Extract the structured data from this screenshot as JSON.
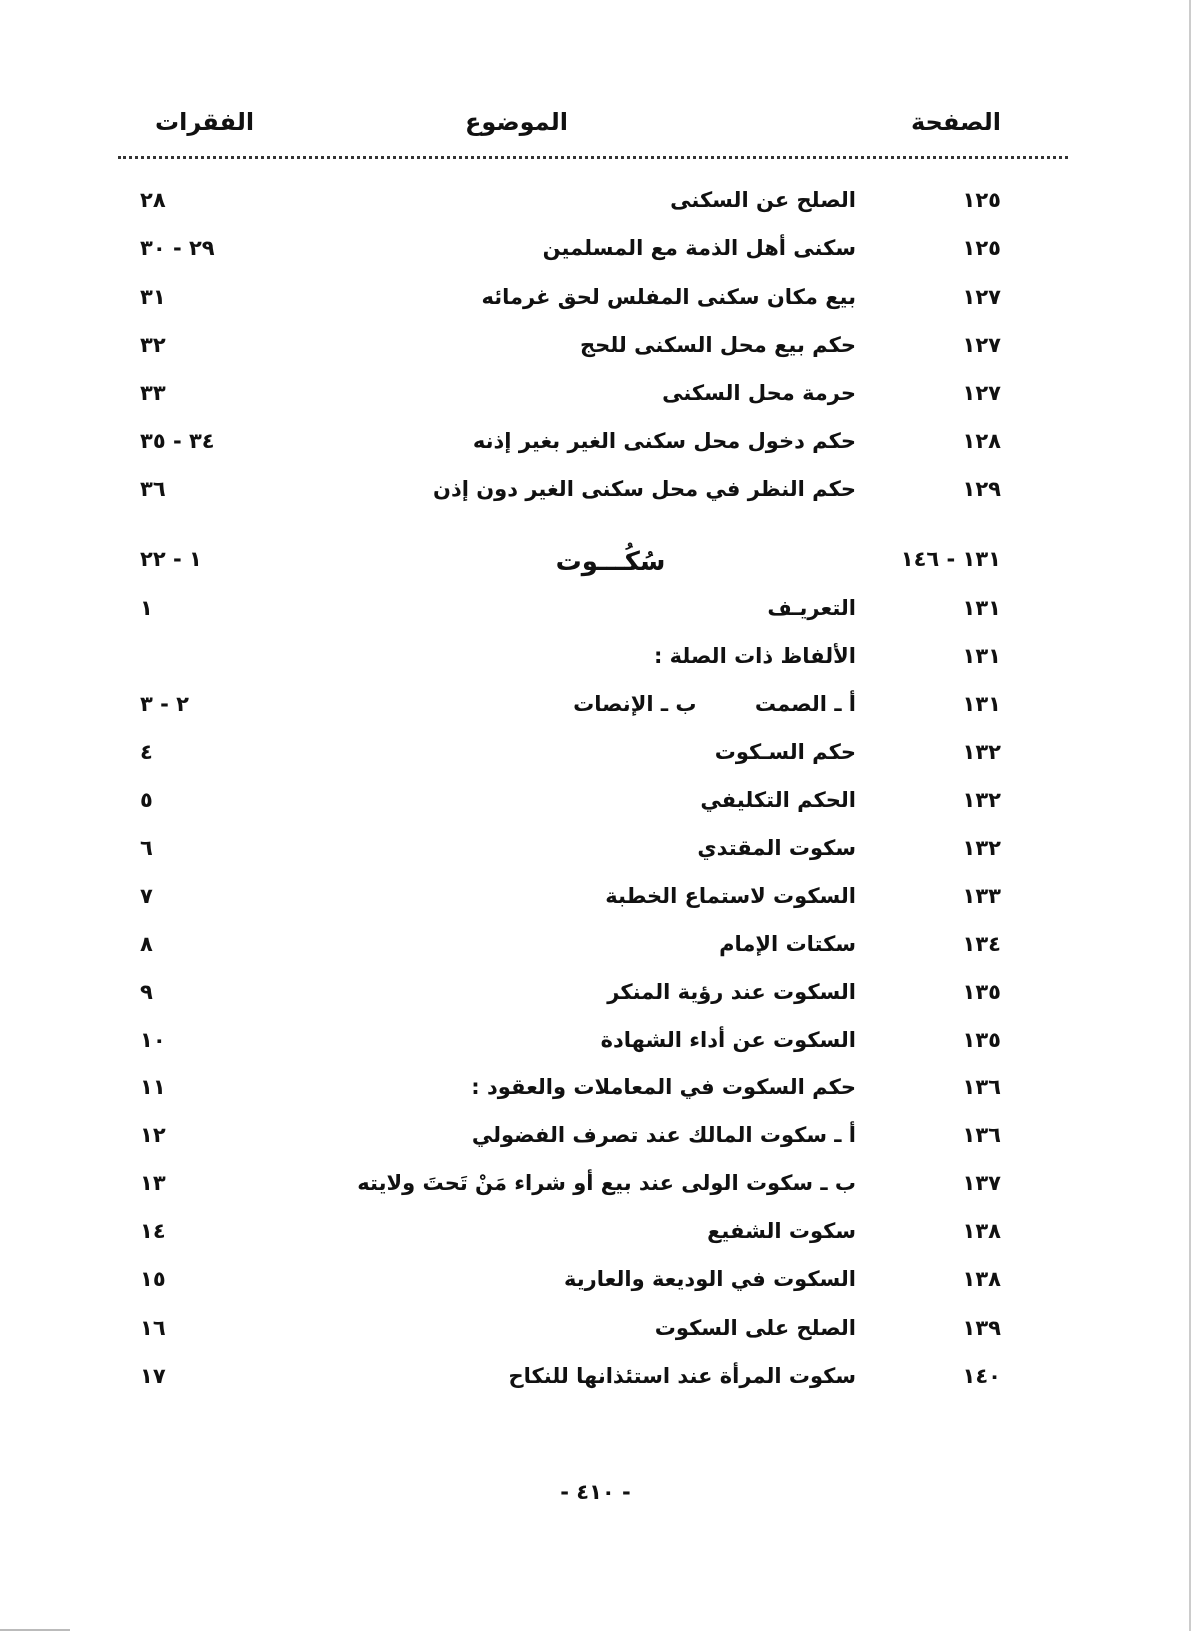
{
  "header": {
    "page": "الصفحة",
    "topic": "الموضوع",
    "paragraphs": "الفقرات"
  },
  "rows": [
    {
      "page": "١٢٥",
      "topic": "الصلح عن السكنى",
      "paragraphs": "٢٨"
    },
    {
      "page": "١٢٥",
      "topic": "سكنى أهل الذمة مع المسلمين",
      "paragraphs": "٢٩ - ٣٠"
    },
    {
      "page": "١٢٧",
      "topic": "بيع مكان سكنى المفلس لحق غرمائه",
      "paragraphs": "٣١"
    },
    {
      "page": "١٢٧",
      "topic": "حكم بيع محل السكنى للحج",
      "paragraphs": "٣٢"
    },
    {
      "page": "١٢٧",
      "topic": "حرمة محل السكنى",
      "paragraphs": "٣٣"
    },
    {
      "page": "١٢٨",
      "topic": "حكم دخول محل سكنى الغير بغير إذنه",
      "paragraphs": "٣٤ - ٣٥"
    },
    {
      "page": "١٢٩",
      "topic": "حكم النظر في محل سكنى الغير دون إذن",
      "paragraphs": "٣٦"
    },
    {
      "page": "١٣١ - ١٤٦",
      "topic": "سُكُـــوت",
      "paragraphs": "١ - ٢٢",
      "heading": true
    },
    {
      "page": "١٣١",
      "topic": "التعريـف",
      "paragraphs": "١"
    },
    {
      "page": "١٣١",
      "topic": "الألفاظ ذات الصلة :",
      "paragraphs": ""
    },
    {
      "page": "١٣١",
      "topic": "أ ـ الصمت        ب ـ الإنصات",
      "paragraphs": "٢ - ٣"
    },
    {
      "page": "١٣٢",
      "topic": "حكم السـكوت",
      "paragraphs": "٤"
    },
    {
      "page": "١٣٢",
      "topic": "الحكم التكليفي",
      "paragraphs": "٥"
    },
    {
      "page": "١٣٢",
      "topic": "سكوت المقتدي",
      "paragraphs": "٦"
    },
    {
      "page": "١٣٣",
      "topic": "السكوت لاستماع الخطبة",
      "paragraphs": "٧"
    },
    {
      "page": "١٣٤",
      "topic": "سكتات الإمام",
      "paragraphs": "٨"
    },
    {
      "page": "١٣٥",
      "topic": "السكوت عند رؤية المنكر",
      "paragraphs": "٩"
    },
    {
      "page": "١٣٥",
      "topic": "السكوت عن أداء الشهادة",
      "paragraphs": "١٠"
    },
    {
      "page": "١٣٦",
      "topic": "حكم السكوت في المعاملات والعقود :",
      "paragraphs": "١١"
    },
    {
      "page": "١٣٦",
      "topic": "أ ـ سكوت المالك عند تصرف الفضولي",
      "paragraphs": "١٢"
    },
    {
      "page": "١٣٧",
      "topic": "ب ـ سكوت الولى عند بيع أو شراء مَنْ تَحتَ ولايته",
      "paragraphs": "١٣"
    },
    {
      "page": "١٣٨",
      "topic": "سكوت الشفيع",
      "paragraphs": "١٤"
    },
    {
      "page": "١٣٨",
      "topic": "السكوت في الوديعة والعارية",
      "paragraphs": "١٥"
    },
    {
      "page": "١٣٩",
      "topic": "الصلح على السكوت",
      "paragraphs": "١٦"
    },
    {
      "page": "١٤٠",
      "topic": "سكوت المرأة عند استئذانها للنكاح",
      "paragraphs": "١٧"
    }
  ],
  "footer": {
    "page_number": "- ٤١٠ -"
  }
}
